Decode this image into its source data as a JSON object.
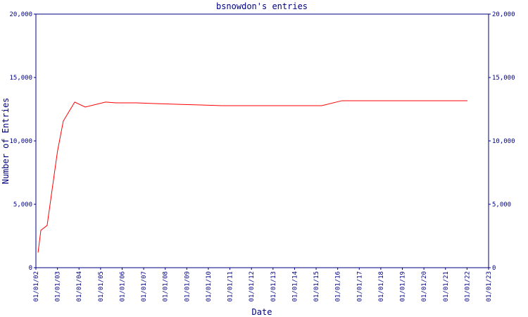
{
  "chart_data": {
    "type": "line",
    "title": "bsnowdon's entries",
    "x_label": "Date",
    "y_label": "Number of Entries",
    "x": [
      2002.1,
      2002.23,
      2002.52,
      2003.0,
      2003.27,
      2003.8,
      2004.29,
      2005.23,
      2005.72,
      2006.64,
      2007.62,
      2009.64,
      2010.62,
      2015.26,
      2016.2,
      2022.02
    ],
    "series": [
      {
        "name": "bsnowdon",
        "color": "#ff0000",
        "values": [
          1200,
          2950,
          3330,
          9170,
          11560,
          13060,
          12670,
          13060,
          13000,
          13000,
          12940,
          12830,
          12780,
          12780,
          13170,
          13170
        ]
      }
    ],
    "xlim": [
      2002,
      2023
    ],
    "xticks": [
      {
        "value": 2002,
        "label": "01/01/02"
      },
      {
        "value": 2003,
        "label": "01/01/03"
      },
      {
        "value": 2004,
        "label": "01/01/04"
      },
      {
        "value": 2005,
        "label": "01/01/05"
      },
      {
        "value": 2006,
        "label": "01/01/06"
      },
      {
        "value": 2007,
        "label": "01/01/07"
      },
      {
        "value": 2008,
        "label": "01/01/08"
      },
      {
        "value": 2009,
        "label": "01/01/09"
      },
      {
        "value": 2010,
        "label": "01/01/10"
      },
      {
        "value": 2011,
        "label": "01/01/11"
      },
      {
        "value": 2012,
        "label": "01/01/12"
      },
      {
        "value": 2013,
        "label": "01/01/13"
      },
      {
        "value": 2014,
        "label": "01/01/14"
      },
      {
        "value": 2015,
        "label": "01/01/15"
      },
      {
        "value": 2016,
        "label": "01/01/16"
      },
      {
        "value": 2017,
        "label": "01/01/17"
      },
      {
        "value": 2018,
        "label": "01/01/18"
      },
      {
        "value": 2019,
        "label": "01/01/19"
      },
      {
        "value": 2020,
        "label": "01/01/20"
      },
      {
        "value": 2021,
        "label": "01/01/21"
      },
      {
        "value": 2022,
        "label": "01/01/22"
      },
      {
        "value": 2023,
        "label": "01/01/23"
      }
    ],
    "ylim": [
      0,
      20000
    ],
    "yticks": [
      0,
      {
        "value": 5000,
        "label": "5,000"
      },
      {
        "value": 10000,
        "label": "10,000"
      },
      {
        "value": 15000,
        "label": "15,000"
      },
      {
        "value": 20000,
        "label": "20,000"
      }
    ],
    "y2lim": [
      0,
      20000
    ],
    "y2ticks": [
      0,
      {
        "value": 5000,
        "label": "5,000"
      },
      {
        "value": 10000,
        "label": "10,000"
      },
      {
        "value": 15000,
        "label": "15,000"
      },
      {
        "value": 20000,
        "label": "20,000"
      }
    ]
  }
}
